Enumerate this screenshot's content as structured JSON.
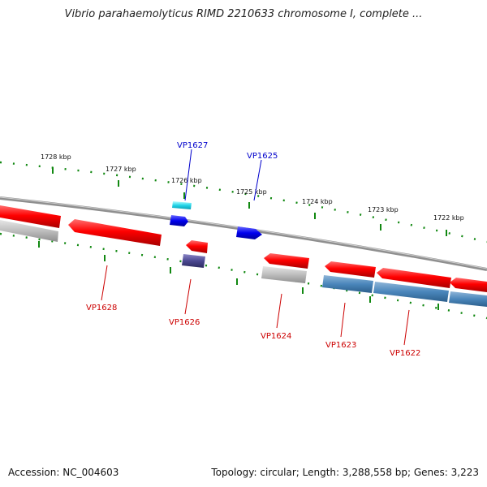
{
  "title": "Vibrio parahaemolyticus RIMD 2210633 chromosome I, complete ...",
  "footer": {
    "accession": "Accession: NC_004603",
    "summary": "Topology: circular; Length: 3,288,558 bp; Genes: 3,223"
  },
  "colors": {
    "plus_strand_label": "#0000cc",
    "minus_strand_label": "#cc0000",
    "tick": "#118811",
    "backbone": "#888888"
  },
  "ticks": [
    {
      "label": "1728 kbp"
    },
    {
      "label": "1727 kbp"
    },
    {
      "label": "1726 kbp"
    },
    {
      "label": "1725 kbp"
    },
    {
      "label": "1724 kbp"
    },
    {
      "label": "1723 kbp"
    },
    {
      "label": "1722 kbp"
    }
  ],
  "gene_labels": [
    {
      "text": "VP1627",
      "strand": "plus"
    },
    {
      "text": "VP1625",
      "strand": "plus"
    },
    {
      "text": "VP1628",
      "strand": "minus"
    },
    {
      "text": "VP1626",
      "strand": "minus"
    },
    {
      "text": "VP1624",
      "strand": "minus"
    },
    {
      "text": "VP1623",
      "strand": "minus"
    },
    {
      "text": "VP1622",
      "strand": "minus"
    }
  ]
}
